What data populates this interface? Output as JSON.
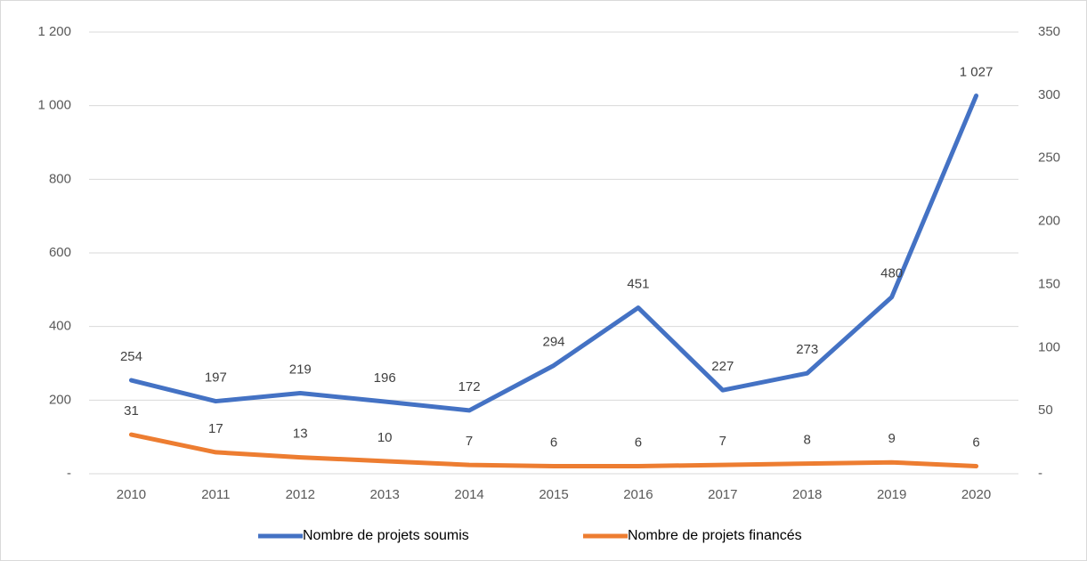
{
  "chart_data": {
    "type": "line",
    "categories": [
      "2010",
      "2011",
      "2012",
      "2013",
      "2014",
      "2015",
      "2016",
      "2017",
      "2018",
      "2019",
      "2020"
    ],
    "series": [
      {
        "name": "Nombre de projets soumis",
        "color": "#4472c4",
        "values": [
          254,
          197,
          219,
          196,
          172,
          294,
          451,
          227,
          273,
          480,
          1027
        ],
        "value_labels": [
          "254",
          "197",
          "219",
          "196",
          "172",
          "294",
          "451",
          "227",
          "273",
          "480",
          "1 027"
        ]
      },
      {
        "name": "Nombre de projets financés",
        "color": "#ed7d31",
        "axis": "y2",
        "values": [
          31,
          17,
          13,
          10,
          7,
          6,
          6,
          7,
          8,
          9,
          6
        ]
      }
    ],
    "ylim": [
      0,
      1200
    ],
    "yticks": [
      {
        "value": 0,
        "label": "-"
      },
      200,
      400,
      600,
      800,
      {
        "value": 1000,
        "label": "1 000"
      },
      {
        "value": 1200,
        "label": "1 200"
      }
    ],
    "y2lim": [
      0,
      350
    ],
    "y2ticks": [
      {
        "value": 0,
        "label": "-"
      },
      50,
      100,
      150,
      200,
      250,
      300,
      350
    ],
    "grid": true,
    "legend": "bottom"
  }
}
